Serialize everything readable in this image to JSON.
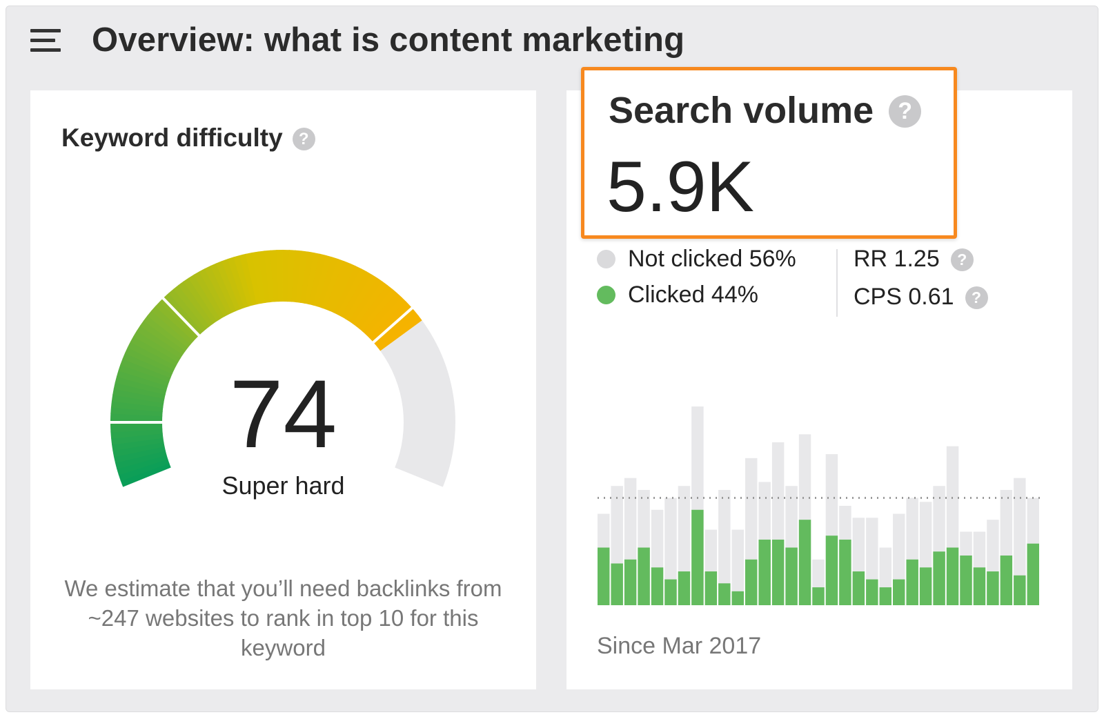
{
  "header": {
    "title": "Overview: what is content marketing",
    "menu_icon": "hamburger-menu-icon"
  },
  "keyword_difficulty": {
    "title": "Keyword difficulty",
    "help": "?",
    "value": "74",
    "score": 74,
    "max": 100,
    "label": "Super hard",
    "description": "We estimate that you’ll need backlinks from ~247 websites to rank in top 10 for this keyword",
    "colors": {
      "start": "#0a9e58",
      "mid1": "#7cb532",
      "mid2": "#d8c200",
      "end": "#f7b200",
      "track": "#e8e8ea"
    }
  },
  "search_volume": {
    "title": "Search volume",
    "help": "?",
    "value": "5.9K",
    "highlight_color": "#f7891f",
    "legend": [
      {
        "label": "Not clicked 56%",
        "color": "#dadadc"
      },
      {
        "label": "Clicked 44%",
        "color": "#63bb5e"
      }
    ],
    "metrics": [
      {
        "label": "RR 1.25",
        "help": "?"
      },
      {
        "label": "CPS 0.61",
        "help": "?"
      }
    ],
    "since": "Since Mar 2017"
  },
  "chart_data": {
    "type": "bar",
    "stacked": true,
    "average_line": 54,
    "series": [
      {
        "color": "#63bb5e",
        "values": [
          29,
          21,
          23,
          29,
          19,
          13,
          17,
          48,
          17,
          11,
          7,
          23,
          33,
          33,
          29,
          43,
          9,
          35,
          33,
          17,
          13,
          9,
          13,
          23,
          19,
          27,
          29,
          25,
          19,
          17,
          25,
          15,
          31
        ]
      },
      {
        "color": "#e8e8ea",
        "values": [
          17,
          39,
          41,
          29,
          29,
          41,
          43,
          52,
          21,
          47,
          31,
          51,
          29,
          49,
          31,
          43,
          14,
          41,
          17,
          27,
          31,
          20,
          33,
          31,
          33,
          33,
          51,
          12,
          18,
          26,
          33,
          49,
          23
        ]
      }
    ],
    "totals": [
      46,
      60,
      64,
      58,
      48,
      54,
      60,
      100,
      38,
      58,
      38,
      74,
      62,
      82,
      60,
      86,
      23,
      76,
      50,
      44,
      44,
      29,
      46,
      54,
      52,
      60,
      80,
      37,
      37,
      43,
      58,
      64,
      54
    ],
    "grid": false,
    "axes": false
  }
}
